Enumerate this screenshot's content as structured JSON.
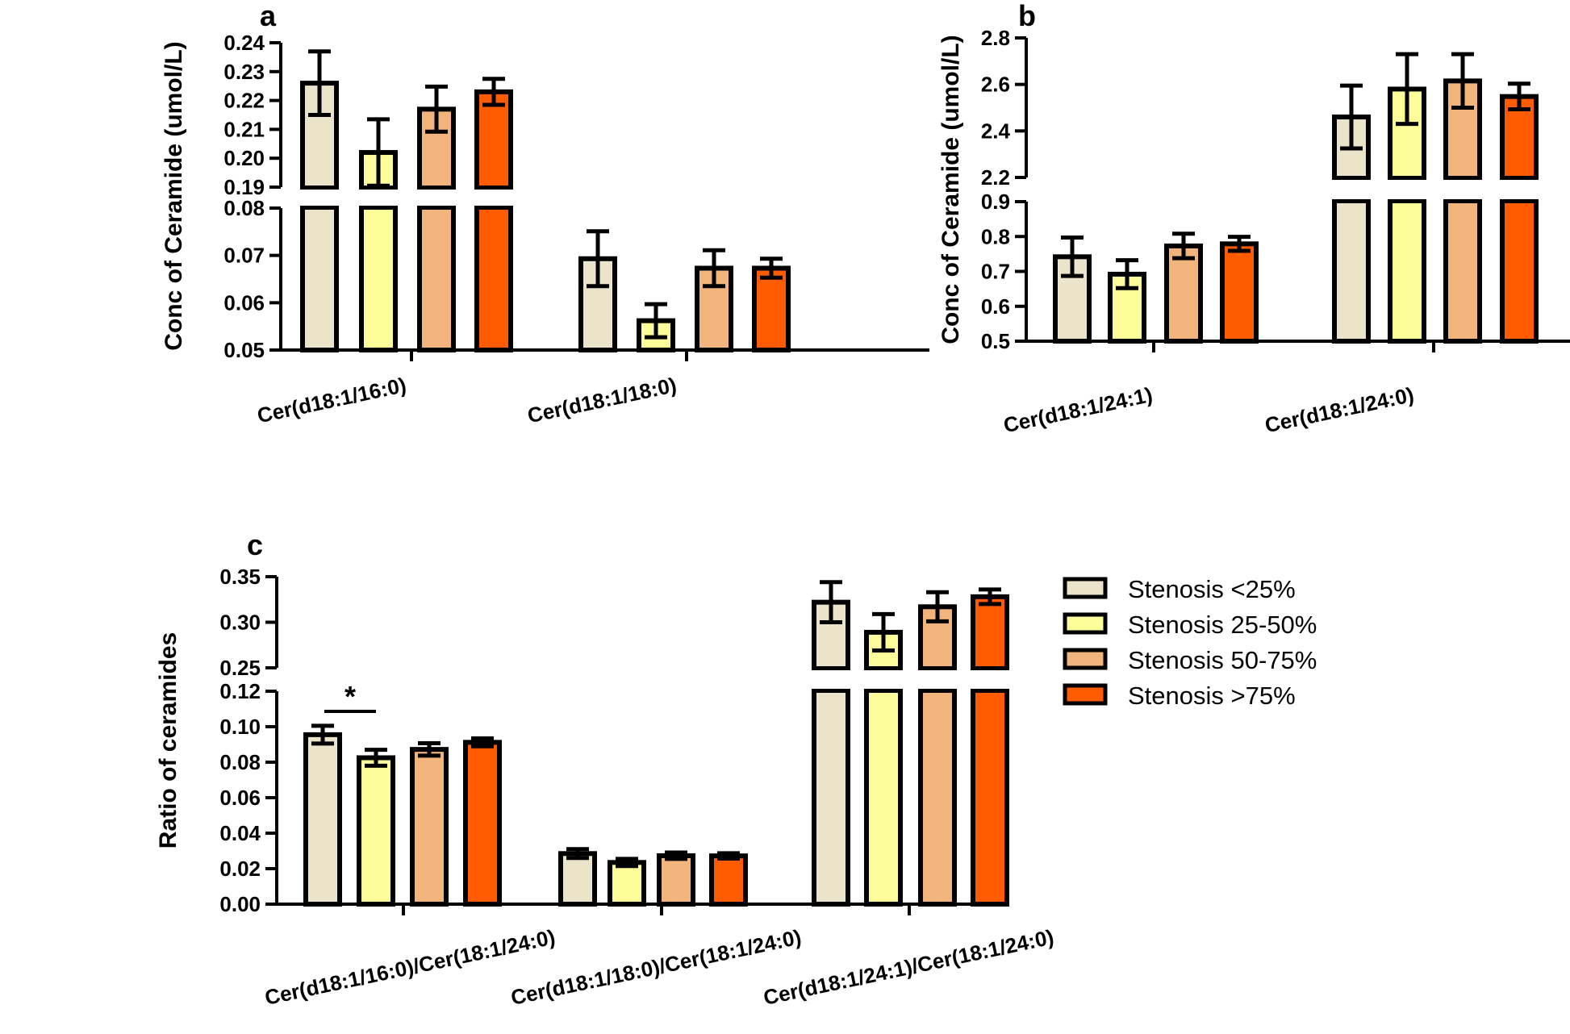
{
  "chart_data": [
    {
      "panel": "a",
      "type": "bar",
      "ylabel": "Conc of Ceramide (umol/L)",
      "categories": [
        "Cer(d18:1/16:0)",
        "Cer(d18:1/18:0)"
      ],
      "axis_break": {
        "lower": [
          0.05,
          0.08
        ],
        "upper": [
          0.19,
          0.24
        ]
      },
      "lower_ticks": [
        "0.05",
        "0.06",
        "0.07",
        "0.08"
      ],
      "upper_ticks": [
        "0.19",
        "0.20",
        "0.21",
        "0.22",
        "0.23",
        "0.24"
      ],
      "series": [
        {
          "name": "Stenosis <25%",
          "values": [
            0.226,
            0.0693
          ],
          "errors": [
            0.011,
            0.0058
          ]
        },
        {
          "name": "Stenosis 25-50%",
          "values": [
            0.202,
            0.0562
          ],
          "errors": [
            0.0115,
            0.0035
          ]
        },
        {
          "name": "Stenosis 50-75%",
          "values": [
            0.217,
            0.0673
          ],
          "errors": [
            0.0078,
            0.0038
          ]
        },
        {
          "name": "Stenosis >75%",
          "values": [
            0.223,
            0.0673
          ],
          "errors": [
            0.0045,
            0.002
          ]
        }
      ]
    },
    {
      "panel": "b",
      "type": "bar",
      "ylabel": "Conc of Ceramide (umol/L)",
      "categories": [
        "Cer(d18:1/24:1)",
        "Cer(d18:1/24:0)"
      ],
      "axis_break": {
        "lower": [
          0.5,
          0.9
        ],
        "upper": [
          2.2,
          2.8
        ]
      },
      "lower_ticks": [
        "0.5",
        "0.6",
        "0.7",
        "0.8",
        "0.9"
      ],
      "upper_ticks": [
        "2.2",
        "2.4",
        "2.6",
        "2.8"
      ],
      "series": [
        {
          "name": "Stenosis <25%",
          "values": [
            0.742,
            2.46
          ],
          "errors": [
            0.055,
            0.135
          ]
        },
        {
          "name": "Stenosis 25-50%",
          "values": [
            0.692,
            2.58
          ],
          "errors": [
            0.04,
            0.15
          ]
        },
        {
          "name": "Stenosis 50-75%",
          "values": [
            0.773,
            2.615
          ],
          "errors": [
            0.035,
            0.115
          ]
        },
        {
          "name": "Stenosis >75%",
          "values": [
            0.779,
            2.548
          ],
          "errors": [
            0.02,
            0.055
          ]
        }
      ]
    },
    {
      "panel": "c",
      "type": "bar",
      "ylabel": "Ratio of ceramides",
      "categories": [
        "Cer(d18:1/16:0)/Cer(18:1/24:0)",
        "Cer(d18:1/18:0)/Cer(18:1/24:0)",
        "Cer(d18:1/24:1)/Cer(18:1/24:0)"
      ],
      "axis_break": {
        "lower": [
          0.0,
          0.12
        ],
        "upper": [
          0.25,
          0.35
        ]
      },
      "lower_ticks": [
        "0.00",
        "0.02",
        "0.04",
        "0.06",
        "0.08",
        "0.10",
        "0.12"
      ],
      "upper_ticks": [
        "0.25",
        "0.30",
        "0.35"
      ],
      "series": [
        {
          "name": "Stenosis <25%",
          "values": [
            0.0955,
            0.0285,
            0.322
          ],
          "errors": [
            0.005,
            0.0025,
            0.022
          ]
        },
        {
          "name": "Stenosis 25-50%",
          "values": [
            0.0825,
            0.0235,
            0.289
          ],
          "errors": [
            0.0045,
            0.002,
            0.02
          ]
        },
        {
          "name": "Stenosis 50-75%",
          "values": [
            0.0872,
            0.0273,
            0.317
          ],
          "errors": [
            0.0035,
            0.0018,
            0.016
          ]
        },
        {
          "name": "Stenosis >75%",
          "values": [
            0.0912,
            0.0272,
            0.328
          ],
          "errors": [
            0.0022,
            0.0015,
            0.008
          ]
        }
      ],
      "annotation": "*"
    }
  ],
  "legend": [
    "Stenosis <25%",
    "Stenosis 25-50%",
    "Stenosis 50-75%",
    "Stenosis >75%"
  ],
  "colors": [
    "#ebe3ca",
    "#fdfd9a",
    "#f2b47d",
    "#ff5b00"
  ]
}
